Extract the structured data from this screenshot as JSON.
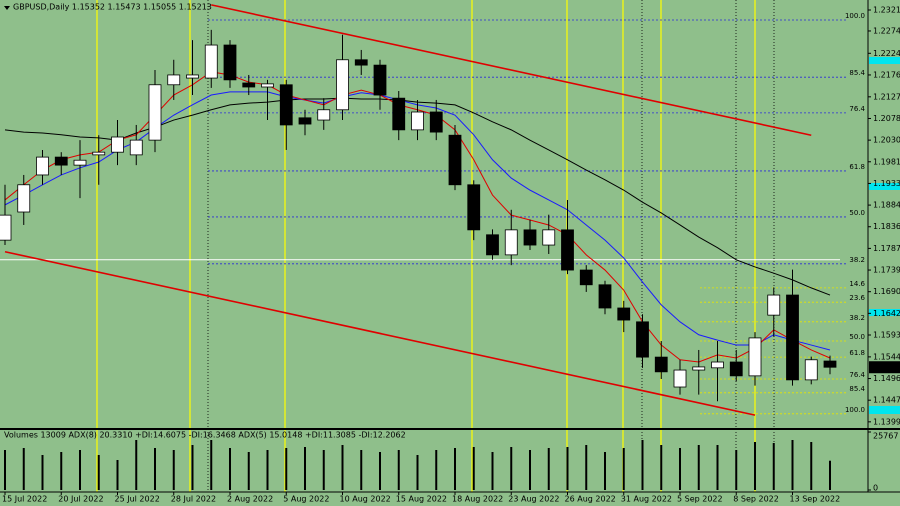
{
  "chart_data": {
    "type": "candlestick",
    "title": "GBPUSD,Daily  1.15352 1.15473 1.15055 1.15213",
    "background": "#8fbf8b",
    "up_color": "#ffffff",
    "down_color": "#000000",
    "categories": [
      "15 Jul 2022",
      null,
      null,
      "20 Jul 2022",
      null,
      null,
      "25 Jul 2022",
      null,
      null,
      "28 Jul 2022",
      null,
      null,
      "2 Aug 2022",
      null,
      null,
      "5 Aug 2022",
      null,
      null,
      "10 Aug 2022",
      null,
      null,
      "15 Aug 2022",
      null,
      null,
      "18 Aug 2022",
      null,
      null,
      "23 Aug 2022",
      null,
      null,
      "26 Aug 2022",
      null,
      null,
      "31 Aug 2022",
      null,
      null,
      "5 Sep 2022",
      null,
      null,
      "8 Sep 2022",
      null,
      null,
      "13 Sep 2022",
      null,
      null
    ],
    "open": [
      1.1806,
      1.1869,
      1.1952,
      1.1992,
      1.1974,
      1.1997,
      1.2003,
      1.1997,
      1.203,
      1.2154,
      1.2169,
      1.2169,
      1.2243,
      1.2158,
      1.2149,
      1.2154,
      1.208,
      1.2075,
      1.2098,
      1.221,
      1.2198,
      1.2124,
      1.2053,
      1.2093,
      1.2041,
      1.193,
      1.1818,
      1.1773,
      1.1829,
      1.1795,
      1.1829,
      1.1739,
      1.1706,
      1.1654,
      1.1623,
      1.1544,
      1.1477,
      1.1515,
      1.152,
      1.1533,
      1.1502,
      1.1638,
      1.1683,
      1.1493,
      1.15352
    ],
    "high": [
      1.193,
      1.1952,
      1.2008,
      1.2003,
      1.203,
      1.2041,
      1.2075,
      1.2064,
      1.2187,
      1.221,
      1.2254,
      1.2277,
      1.2254,
      1.2176,
      1.2165,
      1.2165,
      1.2098,
      1.2124,
      1.2266,
      1.2232,
      1.221,
      1.214,
      1.212,
      1.212,
      1.2064,
      1.194,
      1.183,
      1.1874,
      1.1852,
      1.1863,
      1.1896,
      1.175,
      1.1715,
      1.167,
      1.164,
      1.158,
      1.1538,
      1.156,
      1.158,
      1.156,
      1.16,
      1.17,
      1.174,
      1.1545,
      1.15473
    ],
    "low": [
      1.1795,
      1.184,
      1.193,
      1.1952,
      1.19,
      1.193,
      1.1974,
      1.1974,
      1.2003,
      1.212,
      1.2131,
      1.2147,
      1.2147,
      1.2131,
      1.2075,
      1.2008,
      1.2041,
      1.2053,
      1.2075,
      1.2176,
      1.2098,
      1.203,
      1.203,
      1.203,
      1.1918,
      1.1806,
      1.1762,
      1.175,
      1.1784,
      1.1775,
      1.173,
      1.169,
      1.164,
      1.16,
      1.152,
      1.1495,
      1.146,
      1.146,
      1.1445,
      1.149,
      1.148,
      1.159,
      1.148,
      1.1483,
      1.15055
    ],
    "close": [
      1.1862,
      1.193,
      1.1992,
      1.1974,
      1.1985,
      1.2003,
      1.2037,
      1.203,
      1.2154,
      1.2176,
      1.2176,
      1.2243,
      1.2165,
      1.2149,
      1.2156,
      1.2064,
      1.2066,
      1.2098,
      1.221,
      1.2198,
      1.2131,
      1.2053,
      1.2093,
      1.2048,
      1.193,
      1.1829,
      1.1773,
      1.1829,
      1.1795,
      1.1829,
      1.1739,
      1.1706,
      1.1654,
      1.1627,
      1.1544,
      1.1511,
      1.1515,
      1.1522,
      1.1533,
      1.1502,
      1.1587,
      1.1683,
      1.1493,
      1.1538,
      1.15213
    ],
    "ylim": [
      1.13852,
      1.23394
    ],
    "yticks": [
      1.23215,
      1.22745,
      1.22245,
      {
        "value": 1.2176,
        "label": "1.21760"
      },
      {
        "value": 1.2127,
        "label": "1.21270"
      },
      1.20785,
      {
        "value": 1.203,
        "label": "1.20300"
      },
      1.19815,
      {
        "value": 1.1933,
        "label": "1.19330"
      },
      1.18845,
      {
        "value": 1.1836,
        "label": "1.18360"
      },
      1.17875,
      {
        "value": 1.1739,
        "label": "1.17390"
      },
      1.16905,
      {
        "value": 1.1642,
        "label": "1.16420"
      },
      1.15935,
      1.15445,
      {
        "value": 1.1496,
        "label": "1.14960"
      },
      1.14475,
      {
        "value": 1.1399,
        "label": "1.13990"
      }
    ],
    "indicator_lines": [
      {
        "color": "#000000",
        "values": [
          1.2053,
          1.2048,
          1.2046,
          1.2042,
          1.2037,
          1.2035,
          1.203,
          1.2046,
          1.2059,
          1.2075,
          1.2086,
          1.2098,
          1.2109,
          1.2113,
          1.2115,
          1.212,
          1.2122,
          1.2122,
          1.2124,
          1.2122,
          1.2122,
          1.212,
          1.2115,
          1.2113,
          1.2109,
          1.2091,
          1.2071,
          1.2053,
          1.203,
          1.2008,
          1.1986,
          1.1963,
          1.1941,
          1.1918,
          1.1891,
          1.1867,
          1.184,
          1.1813,
          1.1789,
          1.1762,
          1.1746,
          1.1732,
          1.1717,
          1.1699,
          1.1683
        ]
      },
      {
        "color": "#1a1aff",
        "values": [
          1.1885,
          1.1907,
          1.193,
          1.1952,
          1.1968,
          1.1981,
          1.2008,
          1.2026,
          1.2057,
          1.2086,
          1.2109,
          1.2131,
          1.2138,
          1.2138,
          1.2138,
          1.2127,
          1.212,
          1.2113,
          1.2127,
          1.2136,
          1.2131,
          1.212,
          1.2109,
          1.2102,
          1.2086,
          1.2042,
          1.1986,
          1.1945,
          1.1918,
          1.1896,
          1.1874,
          1.184,
          1.1806,
          1.1766,
          1.1712,
          1.1661,
          1.1623,
          1.1594,
          1.1582,
          1.1571,
          1.1571,
          1.1594,
          1.1582,
          1.1571,
          1.156
        ]
      },
      {
        "color": "#e00000",
        "values": [
          1.1896,
          1.193,
          1.1963,
          1.1986,
          1.1997,
          1.2003,
          1.203,
          1.2042,
          1.2086,
          1.2131,
          1.2154,
          1.2183,
          1.2176,
          1.216,
          1.2154,
          1.2131,
          1.212,
          1.2109,
          1.2131,
          1.2142,
          1.2131,
          1.2109,
          1.2098,
          1.2086,
          1.2053,
          1.1986,
          1.1907,
          1.1862,
          1.1851,
          1.184,
          1.1818,
          1.1773,
          1.1739,
          1.1694,
          1.1623,
          1.1571,
          1.1538,
          1.1533,
          1.1549,
          1.1542,
          1.1564,
          1.1605,
          1.1582,
          1.156,
          1.1542
        ]
      }
    ],
    "trendlines": [
      {
        "color": "#e00000",
        "from": [
          11,
          1.2333
        ],
        "to": [
          43,
          1.2041
        ]
      },
      {
        "color": "#e00000",
        "from": [
          0,
          1.178
        ],
        "to": [
          40,
          1.1414
        ]
      }
    ],
    "horizontal_line": {
      "value": 1.1762,
      "color": "#ffffff"
    },
    "fibo_levels": [
      {
        "color": "#2b2bd8",
        "levels": [
          {
            "value": 1.2299,
            "label": "100.0"
          },
          {
            "value": 1.2171,
            "label": "85.4"
          },
          {
            "value": 1.2091,
            "label": "76.4"
          },
          {
            "value": 1.1961,
            "label": "61.8"
          },
          {
            "value": 1.1858,
            "label": "50.0"
          },
          {
            "value": 1.1753,
            "label": "38.2"
          }
        ]
      },
      {
        "color": "#e6e600",
        "levels": [
          {
            "value": 1.1699,
            "label": "14.6"
          },
          {
            "value": 1.1667,
            "label": "23.6"
          },
          {
            "value": 1.1623,
            "label": "38.2"
          },
          {
            "value": 1.158,
            "label": "50.0"
          },
          {
            "value": 1.1544,
            "label": "61.8"
          },
          {
            "value": 1.1495,
            "label": "76.4"
          },
          {
            "value": 1.1464,
            "label": "85.4"
          },
          {
            "value": 1.1417,
            "label": "100.0"
          }
        ]
      }
    ],
    "volume": {
      "label": "Volumes 13009  ADX(8) 20.3310 +DI:14.6075 -DI:16.3468  ADX(5) 15.0148 +DI:11.3085 -DI:12.2062",
      "color": "#000000",
      "values": [
        17770,
        18660,
        15550,
        16880,
        17770,
        15550,
        13330,
        22210,
        18660,
        17770,
        19990,
        22210,
        18660,
        16880,
        17770,
        18660,
        19100,
        17770,
        19990,
        17770,
        16880,
        17770,
        15550,
        17770,
        18660,
        19100,
        16880,
        19100,
        17770,
        18660,
        19100,
        19990,
        16880,
        18660,
        22210,
        19990,
        18660,
        19990,
        19990,
        17770,
        21330,
        20880,
        22210,
        21330,
        13009
      ],
      "ylim": [
        0,
        25767
      ],
      "yticks": [
        25767,
        0
      ]
    }
  }
}
